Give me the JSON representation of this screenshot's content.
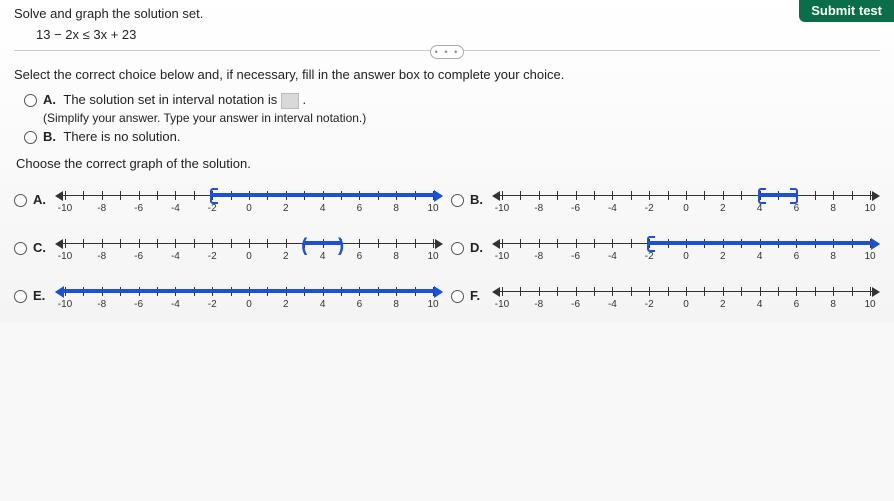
{
  "header": {
    "submit": "Submit test"
  },
  "problem": {
    "instruction": "Solve and graph the solution set.",
    "equation": "13 − 2x ≤ 3x + 23"
  },
  "dots": "• • •",
  "select_prompt": "Select the correct choice below and, if necessary, fill in the answer box to complete your choice.",
  "choiceA": {
    "label": "A.",
    "text_before": "The solution set in interval notation is ",
    "text_after": ".",
    "hint": "(Simplify your answer. Type your answer in interval notation.)"
  },
  "choiceB": {
    "label": "B.",
    "text": "There is no solution."
  },
  "graph_prompt": "Choose the correct graph of the solution.",
  "axis": {
    "min": -10,
    "max": 10,
    "step": 2,
    "labels": [
      "-10",
      "-8",
      "-6",
      "-4",
      "-2",
      "0",
      "2",
      "4",
      "6",
      "8",
      "10"
    ]
  },
  "graphs": {
    "A": {
      "label": "A.",
      "segments": [
        {
          "type": "ray",
          "from": -2,
          "dir": "right",
          "left_end": "bracket-open-right"
        }
      ]
    },
    "B": {
      "label": "B.",
      "segments": [
        {
          "type": "interval",
          "from": 4,
          "to": 6,
          "left_end": "bracket-open-right",
          "right_end": "bracket-open-left"
        }
      ]
    },
    "C": {
      "label": "C.",
      "segments": [
        {
          "type": "interval",
          "from": 3,
          "to": 5,
          "left_end": "paren-left",
          "right_end": "paren-right"
        }
      ]
    },
    "D": {
      "label": "D.",
      "segments": [
        {
          "type": "ray",
          "from": -2,
          "dir": "right",
          "left_end": "bracket-open-right"
        }
      ]
    },
    "E": {
      "label": "E.",
      "segments": [
        {
          "type": "full"
        }
      ]
    },
    "F": {
      "label": "F.",
      "segments": []
    }
  },
  "style": {
    "axis_color": "#333333",
    "blue": "#1d4fd7",
    "tick_fontsize": 10
  }
}
